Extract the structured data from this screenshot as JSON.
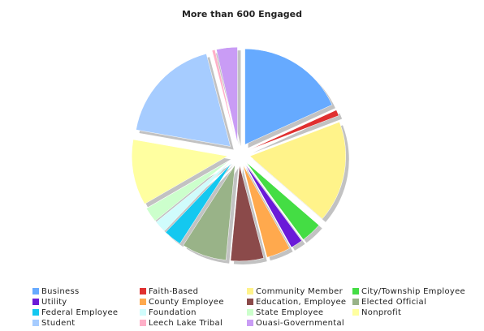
{
  "chart_data": {
    "type": "pie",
    "title": "More than 600 Engaged",
    "categories": [
      "Business",
      "Faith-Based",
      "Community Member",
      "City/Township Employee",
      "Utility",
      "County Employee",
      "Education, Employee",
      "Elected Official",
      "Federal Employee",
      "Foundation",
      "State Employee",
      "Nonprofit",
      "Student",
      "Leech Lake Tribal",
      "Ouasi-Governmental"
    ],
    "values": [
      18,
      1,
      17,
      3.5,
      2,
      4,
      5.5,
      7.5,
      3,
      2,
      2.5,
      11,
      18,
      0.5,
      3.5
    ],
    "colors": [
      "#66aaff",
      "#e03030",
      "#fff38a",
      "#44dd44",
      "#6a1ad8",
      "#ffa94d",
      "#8b4a4a",
      "#99b388",
      "#14c8f0",
      "#d0fcfc",
      "#ccffcc",
      "#ffffa0",
      "#a6ccff",
      "#ffb0c8",
      "#c99cf5"
    ]
  }
}
